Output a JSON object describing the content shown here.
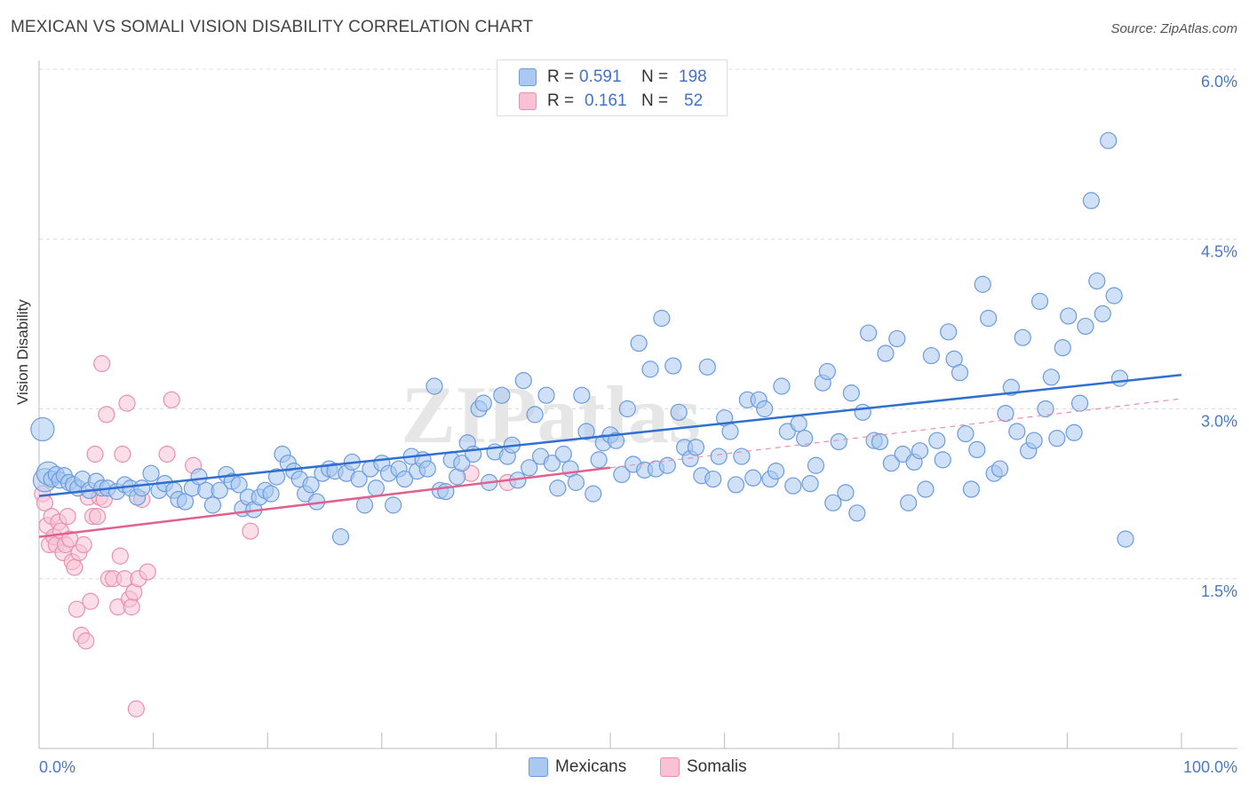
{
  "title": "MEXICAN VS SOMALI VISION DISABILITY CORRELATION CHART",
  "source": "Source: ZipAtlas.com",
  "watermark": "ZIPatlas",
  "legend": {
    "rows": [
      {
        "r_label": "R =",
        "r_value": "0.591",
        "n_label": "N =",
        "n_value": "198",
        "color": "#aac8f0",
        "border": "#6a9be0"
      },
      {
        "r_label": "R =",
        "r_value": "0.161",
        "n_label": "N =",
        "n_value": "52",
        "color": "#f8c2d4",
        "border": "#e890b0"
      }
    ]
  },
  "bottom_legend": [
    {
      "label": "Mexicans",
      "color": "#aac8f0",
      "border": "#6a9be0"
    },
    {
      "label": "Somalis",
      "color": "#f8c2d4",
      "border": "#e890b0"
    }
  ],
  "chart_data": {
    "type": "scatter",
    "title": "MEXICAN VS SOMALI VISION DISABILITY CORRELATION CHART",
    "xlabel": "",
    "ylabel": "Vision Disability",
    "xlim": [
      0,
      100
    ],
    "ylim": [
      0,
      6.0
    ],
    "x_tick_labels": [
      "0.0%",
      "100.0%"
    ],
    "y_ticks": [
      1.5,
      3.0,
      4.5,
      6.0
    ],
    "y_tick_labels": [
      "1.5%",
      "3.0%",
      "4.5%",
      "6.0%"
    ],
    "grid": "horizontal dashed",
    "legend_position": "top-center",
    "series": [
      {
        "name": "Mexicans",
        "color": "#6a9be0",
        "fill": "#aac8f0",
        "trend": {
          "x": [
            0,
            100
          ],
          "y": [
            2.23,
            3.3
          ]
        },
        "points": [
          [
            0.3,
            2.82
          ],
          [
            0.5,
            2.37
          ],
          [
            0.8,
            2.43
          ],
          [
            1.1,
            2.38
          ],
          [
            1.5,
            2.42
          ],
          [
            1.8,
            2.37
          ],
          [
            2.2,
            2.41
          ],
          [
            2.6,
            2.35
          ],
          [
            3.0,
            2.33
          ],
          [
            3.4,
            2.3
          ],
          [
            3.8,
            2.38
          ],
          [
            4.4,
            2.28
          ],
          [
            5.0,
            2.36
          ],
          [
            5.5,
            2.3
          ],
          [
            6.0,
            2.3
          ],
          [
            6.8,
            2.27
          ],
          [
            7.5,
            2.33
          ],
          [
            8.0,
            2.3
          ],
          [
            8.6,
            2.22
          ],
          [
            9.0,
            2.3
          ],
          [
            9.8,
            2.43
          ],
          [
            10.5,
            2.28
          ],
          [
            11.0,
            2.34
          ],
          [
            11.8,
            2.28
          ],
          [
            12.2,
            2.2
          ],
          [
            12.8,
            2.18
          ],
          [
            13.4,
            2.3
          ],
          [
            14.0,
            2.4
          ],
          [
            14.6,
            2.28
          ],
          [
            15.2,
            2.15
          ],
          [
            15.8,
            2.28
          ],
          [
            16.4,
            2.42
          ],
          [
            16.9,
            2.36
          ],
          [
            17.5,
            2.33
          ],
          [
            17.8,
            2.12
          ],
          [
            18.3,
            2.22
          ],
          [
            18.8,
            2.11
          ],
          [
            19.3,
            2.22
          ],
          [
            19.8,
            2.28
          ],
          [
            20.3,
            2.25
          ],
          [
            20.8,
            2.4
          ],
          [
            21.3,
            2.6
          ],
          [
            21.8,
            2.52
          ],
          [
            22.3,
            2.45
          ],
          [
            22.8,
            2.38
          ],
          [
            23.3,
            2.25
          ],
          [
            23.8,
            2.33
          ],
          [
            24.3,
            2.18
          ],
          [
            24.8,
            2.43
          ],
          [
            25.4,
            2.47
          ],
          [
            25.9,
            2.45
          ],
          [
            26.4,
            1.87
          ],
          [
            26.9,
            2.43
          ],
          [
            27.4,
            2.53
          ],
          [
            28.0,
            2.38
          ],
          [
            28.5,
            2.15
          ],
          [
            29.0,
            2.47
          ],
          [
            29.5,
            2.3
          ],
          [
            30.0,
            2.52
          ],
          [
            30.6,
            2.43
          ],
          [
            31.0,
            2.15
          ],
          [
            31.5,
            2.47
          ],
          [
            32.0,
            2.38
          ],
          [
            32.6,
            2.58
          ],
          [
            33.1,
            2.45
          ],
          [
            33.6,
            2.55
          ],
          [
            34.0,
            2.47
          ],
          [
            34.6,
            3.2
          ],
          [
            35.1,
            2.28
          ],
          [
            35.6,
            2.27
          ],
          [
            36.1,
            2.55
          ],
          [
            36.6,
            2.4
          ],
          [
            37.0,
            2.52
          ],
          [
            37.5,
            2.7
          ],
          [
            38.0,
            2.6
          ],
          [
            38.5,
            3.0
          ],
          [
            38.9,
            3.05
          ],
          [
            39.4,
            2.35
          ],
          [
            39.9,
            2.62
          ],
          [
            40.5,
            3.12
          ],
          [
            41.0,
            2.58
          ],
          [
            41.4,
            2.68
          ],
          [
            41.9,
            2.37
          ],
          [
            42.4,
            3.25
          ],
          [
            42.9,
            2.48
          ],
          [
            43.4,
            2.95
          ],
          [
            43.9,
            2.58
          ],
          [
            44.4,
            3.12
          ],
          [
            44.9,
            2.52
          ],
          [
            45.4,
            2.3
          ],
          [
            45.9,
            2.6
          ],
          [
            46.5,
            2.47
          ],
          [
            47.0,
            2.35
          ],
          [
            47.5,
            3.12
          ],
          [
            47.9,
            2.8
          ],
          [
            48.5,
            2.25
          ],
          [
            49.0,
            2.55
          ],
          [
            49.4,
            2.7
          ],
          [
            50.0,
            2.77
          ],
          [
            50.5,
            2.72
          ],
          [
            51.0,
            2.42
          ],
          [
            51.5,
            3.0
          ],
          [
            52.0,
            2.51
          ],
          [
            52.5,
            3.58
          ],
          [
            53.0,
            2.46
          ],
          [
            53.5,
            3.35
          ],
          [
            54.0,
            2.47
          ],
          [
            54.5,
            3.8
          ],
          [
            55.0,
            2.5
          ],
          [
            55.5,
            3.38
          ],
          [
            56.0,
            2.97
          ],
          [
            56.5,
            2.66
          ],
          [
            57.0,
            2.56
          ],
          [
            57.5,
            2.66
          ],
          [
            58.0,
            2.41
          ],
          [
            58.5,
            3.37
          ],
          [
            59.0,
            2.38
          ],
          [
            59.5,
            2.58
          ],
          [
            60.0,
            2.92
          ],
          [
            60.5,
            2.8
          ],
          [
            61.0,
            2.33
          ],
          [
            61.5,
            2.58
          ],
          [
            62.0,
            3.08
          ],
          [
            62.5,
            2.39
          ],
          [
            63.0,
            3.08
          ],
          [
            63.5,
            3.0
          ],
          [
            64.0,
            2.38
          ],
          [
            64.5,
            2.45
          ],
          [
            65.0,
            3.2
          ],
          [
            65.5,
            2.8
          ],
          [
            66.0,
            2.32
          ],
          [
            66.5,
            2.87
          ],
          [
            67.0,
            2.74
          ],
          [
            67.5,
            2.34
          ],
          [
            68.0,
            2.5
          ],
          [
            68.6,
            3.23
          ],
          [
            69.0,
            3.33
          ],
          [
            69.5,
            2.17
          ],
          [
            70.0,
            2.71
          ],
          [
            70.6,
            2.26
          ],
          [
            71.1,
            3.14
          ],
          [
            71.6,
            2.08
          ],
          [
            72.1,
            2.97
          ],
          [
            72.6,
            3.67
          ],
          [
            73.1,
            2.72
          ],
          [
            73.6,
            2.71
          ],
          [
            74.1,
            3.49
          ],
          [
            74.6,
            2.52
          ],
          [
            75.1,
            3.62
          ],
          [
            75.6,
            2.6
          ],
          [
            76.1,
            2.17
          ],
          [
            76.6,
            2.53
          ],
          [
            77.1,
            2.63
          ],
          [
            77.6,
            2.29
          ],
          [
            78.1,
            3.47
          ],
          [
            78.6,
            2.72
          ],
          [
            79.1,
            2.55
          ],
          [
            79.6,
            3.68
          ],
          [
            80.1,
            3.44
          ],
          [
            80.6,
            3.32
          ],
          [
            81.1,
            2.78
          ],
          [
            81.6,
            2.29
          ],
          [
            82.1,
            2.64
          ],
          [
            82.6,
            4.1
          ],
          [
            83.1,
            3.8
          ],
          [
            83.6,
            2.43
          ],
          [
            84.1,
            2.47
          ],
          [
            84.6,
            2.96
          ],
          [
            85.1,
            3.19
          ],
          [
            85.6,
            2.8
          ],
          [
            86.1,
            3.63
          ],
          [
            86.6,
            2.63
          ],
          [
            87.1,
            2.72
          ],
          [
            87.6,
            3.95
          ],
          [
            88.1,
            3.0
          ],
          [
            88.6,
            3.28
          ],
          [
            89.1,
            2.74
          ],
          [
            89.6,
            3.54
          ],
          [
            90.1,
            3.82
          ],
          [
            90.6,
            2.79
          ],
          [
            91.1,
            3.05
          ],
          [
            91.6,
            3.73
          ],
          [
            92.1,
            4.84
          ],
          [
            92.6,
            4.13
          ],
          [
            93.1,
            3.84
          ],
          [
            93.6,
            5.37
          ],
          [
            94.1,
            4.0
          ],
          [
            94.6,
            3.27
          ],
          [
            95.1,
            1.85
          ]
        ]
      },
      {
        "name": "Somalis",
        "color": "#e890b0",
        "fill": "#f8c2d4",
        "trend": {
          "x": [
            0,
            50
          ],
          "y": [
            1.87,
            2.48
          ]
        },
        "points": [
          [
            0.3,
            2.25
          ],
          [
            0.5,
            2.17
          ],
          [
            0.7,
            1.97
          ],
          [
            0.9,
            1.8
          ],
          [
            1.1,
            2.05
          ],
          [
            1.3,
            1.87
          ],
          [
            1.5,
            1.8
          ],
          [
            1.7,
            2.0
          ],
          [
            1.9,
            1.92
          ],
          [
            2.1,
            1.73
          ],
          [
            2.3,
            1.8
          ],
          [
            2.5,
            2.05
          ],
          [
            2.7,
            1.85
          ],
          [
            2.9,
            1.65
          ],
          [
            3.1,
            1.6
          ],
          [
            3.3,
            1.23
          ],
          [
            3.5,
            1.73
          ],
          [
            3.7,
            1.0
          ],
          [
            3.9,
            1.8
          ],
          [
            4.1,
            0.95
          ],
          [
            4.3,
            2.22
          ],
          [
            4.5,
            1.3
          ],
          [
            4.7,
            2.05
          ],
          [
            4.9,
            2.6
          ],
          [
            5.1,
            2.05
          ],
          [
            5.3,
            2.22
          ],
          [
            5.5,
            3.4
          ],
          [
            5.7,
            2.2
          ],
          [
            5.9,
            2.95
          ],
          [
            6.1,
            1.5
          ],
          [
            6.5,
            1.5
          ],
          [
            6.9,
            1.25
          ],
          [
            7.1,
            1.7
          ],
          [
            7.3,
            2.6
          ],
          [
            7.5,
            1.5
          ],
          [
            7.7,
            3.05
          ],
          [
            7.9,
            1.32
          ],
          [
            8.1,
            1.25
          ],
          [
            8.3,
            1.38
          ],
          [
            8.5,
            0.35
          ],
          [
            8.7,
            1.5
          ],
          [
            9.0,
            2.2
          ],
          [
            9.5,
            1.56
          ],
          [
            11.6,
            3.08
          ],
          [
            11.2,
            2.6
          ],
          [
            13.5,
            2.5
          ],
          [
            18.5,
            1.92
          ],
          [
            37.8,
            2.43
          ],
          [
            41.0,
            2.35
          ]
        ]
      }
    ]
  }
}
